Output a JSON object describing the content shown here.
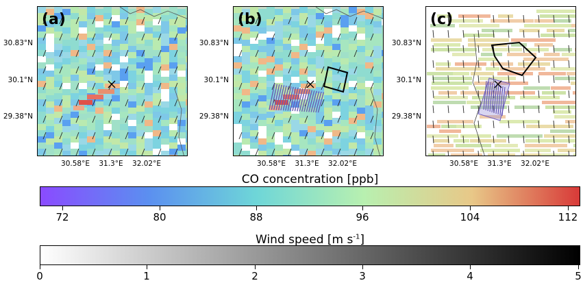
{
  "panels": [
    {
      "label": "(a)",
      "yticks": [
        "30.83°N",
        "30.1°N",
        "29.38°N"
      ],
      "xticks": [
        "30.58°E",
        "31.3°E",
        "32.02°E"
      ]
    },
    {
      "label": "(b)",
      "yticks": [
        "30.83°N",
        "30.1°N",
        "29.38°N"
      ],
      "xticks": [
        "30.58°E",
        "31.3°E",
        "32.02°E"
      ]
    },
    {
      "label": "(c)",
      "yticks": [
        "30.83°N",
        "30.1°N",
        "29.38°N"
      ],
      "xticks": [
        "30.58°E",
        "31.3°E",
        "32.02°E"
      ]
    }
  ],
  "colorbars": [
    {
      "title": "CO concentration [ppb]",
      "ticks": [
        "72",
        "80",
        "88",
        "96",
        "104",
        "112"
      ],
      "colors": [
        "#8a4bff",
        "#5b8ff0",
        "#6ed6d8",
        "#b8f0b0",
        "#e8c888",
        "#d83a38"
      ]
    },
    {
      "title": "Wind speed [m s",
      "title_sup": "-1",
      "title_end": "]",
      "ticks": [
        "0",
        "1",
        "2",
        "3",
        "4",
        "5"
      ],
      "colors": [
        "#ffffff",
        "#000000"
      ]
    }
  ]
}
